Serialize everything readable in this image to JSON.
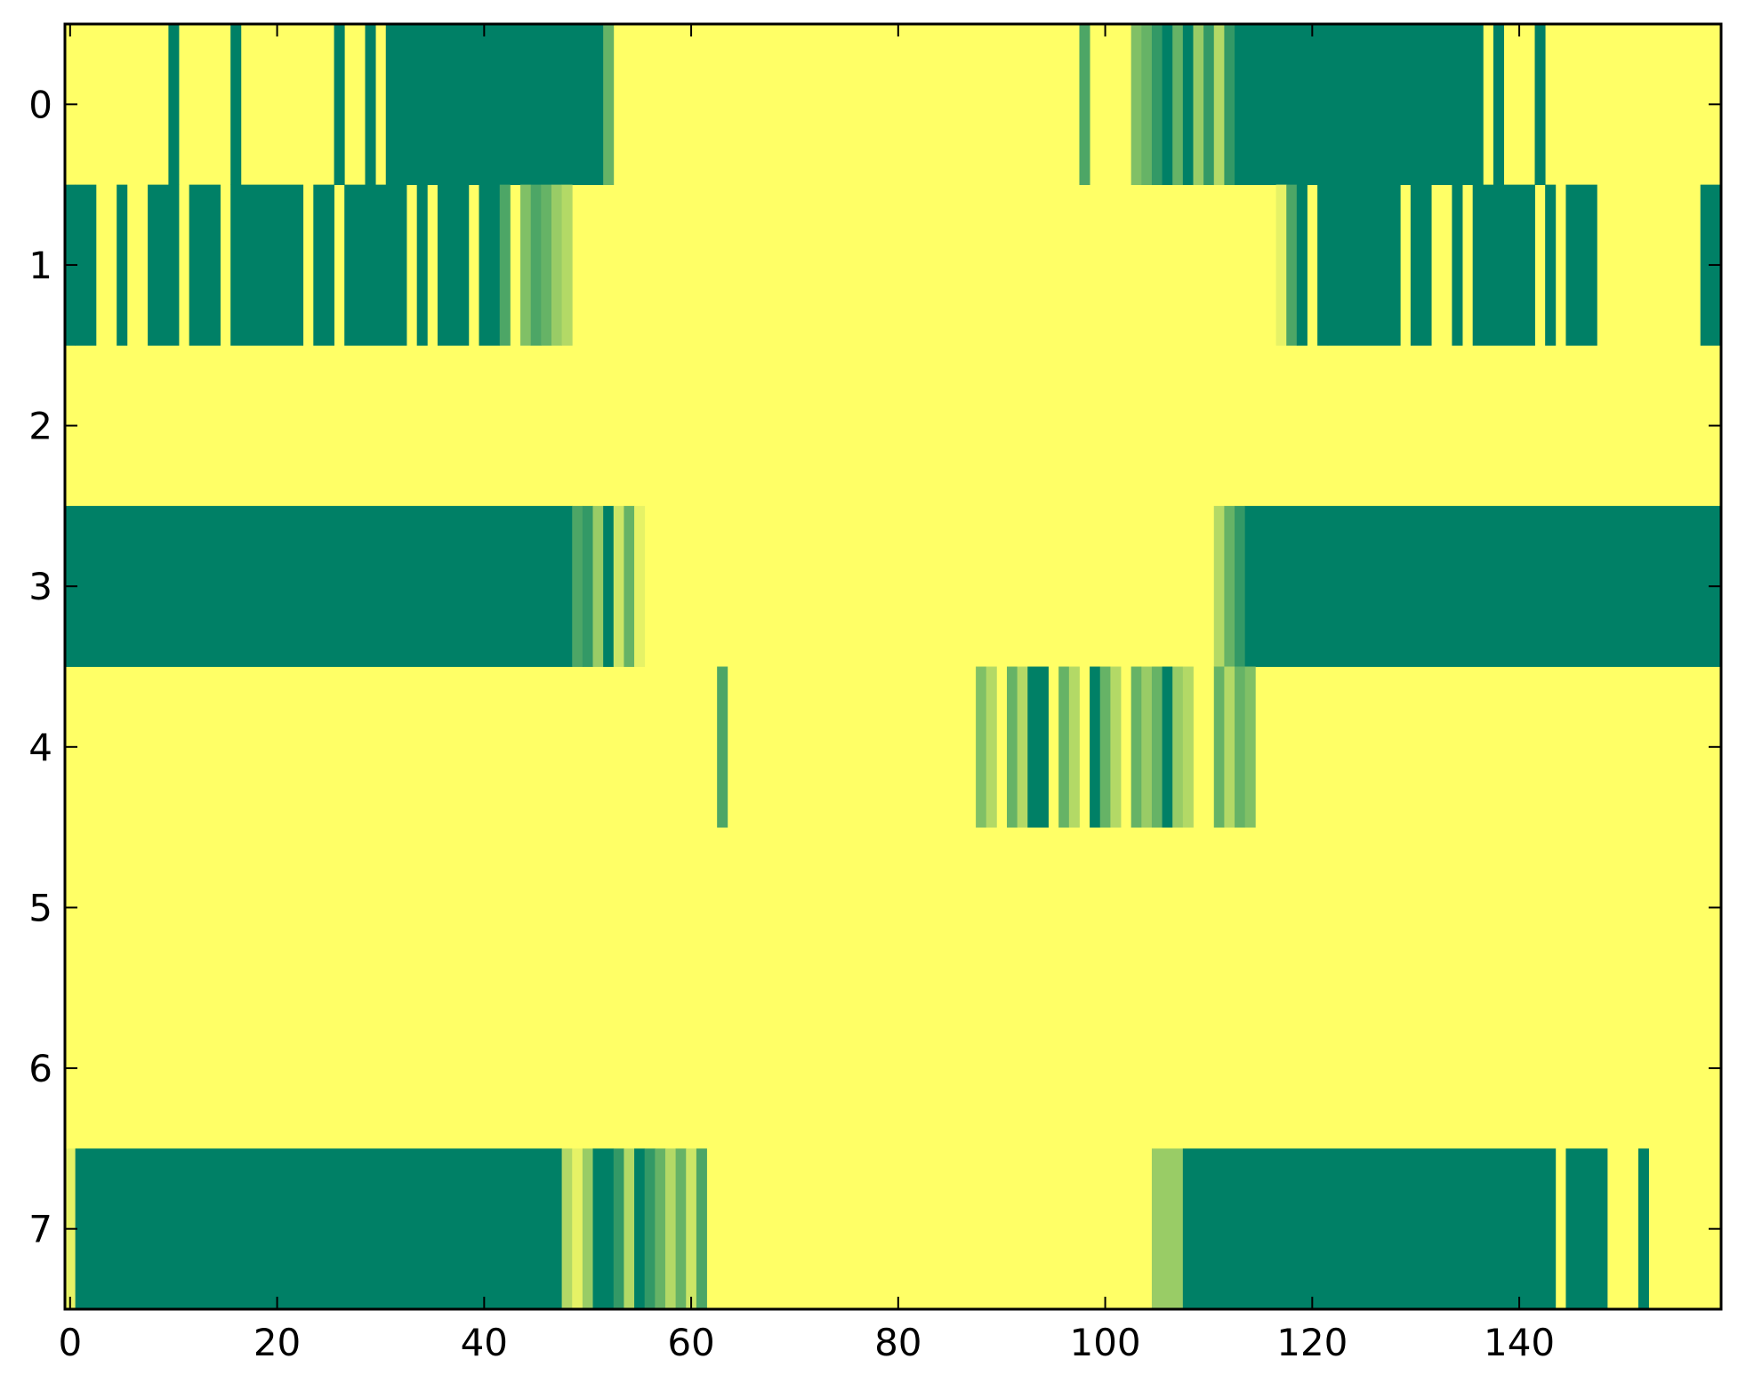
{
  "chart_data": {
    "type": "heatmap",
    "colormap": "summer_r",
    "colors": {
      "low": "#ffff66",
      "high": "#008066",
      "axes": "#000000",
      "background": "#ffffff"
    },
    "xlim": [
      -0.5,
      159.5
    ],
    "ylim": [
      7.5,
      -0.5
    ],
    "x_ticks": [
      0,
      20,
      40,
      60,
      80,
      100,
      120,
      140
    ],
    "x_tick_labels": [
      "0",
      "20",
      "40",
      "60",
      "80",
      "100",
      "120",
      "140"
    ],
    "y_ticks": [
      0,
      1,
      2,
      3,
      4,
      5,
      6,
      7
    ],
    "y_tick_labels": [
      "0",
      "1",
      "2",
      "3",
      "4",
      "5",
      "6",
      "7"
    ],
    "n_rows": 8,
    "n_cols": 160,
    "grid": false,
    "legend": "none",
    "rows": [
      {
        "row": 0,
        "segments": [
          [
            10,
            10,
            1
          ],
          [
            16,
            16,
            1
          ],
          [
            26,
            26,
            1
          ],
          [
            29,
            29,
            1
          ],
          [
            31,
            51,
            1
          ],
          [
            52,
            52,
            0.6
          ],
          [
            98,
            98,
            0.7
          ],
          [
            103,
            103,
            0.5
          ],
          [
            104,
            104,
            0.6
          ],
          [
            105,
            105,
            0.8
          ],
          [
            106,
            106,
            1
          ],
          [
            107,
            107,
            0.6
          ],
          [
            108,
            108,
            1
          ],
          [
            109,
            109,
            0.4
          ],
          [
            110,
            110,
            0.8
          ],
          [
            111,
            111,
            0.3
          ],
          [
            112,
            112,
            0.8
          ],
          [
            113,
            136,
            1
          ],
          [
            138,
            138,
            1
          ],
          [
            142,
            142,
            1
          ]
        ]
      },
      {
        "row": 1,
        "segments": [
          [
            0,
            0,
            1
          ],
          [
            1,
            2,
            1
          ],
          [
            5,
            5,
            1
          ],
          [
            8,
            10,
            1
          ],
          [
            12,
            14,
            1
          ],
          [
            16,
            22,
            1
          ],
          [
            24,
            25,
            1
          ],
          [
            27,
            32,
            1
          ],
          [
            34,
            34,
            1
          ],
          [
            36,
            38,
            1
          ],
          [
            40,
            41,
            1
          ],
          [
            42,
            42,
            0.7
          ],
          [
            44,
            44,
            0.5
          ],
          [
            45,
            45,
            0.7
          ],
          [
            46,
            46,
            0.6
          ],
          [
            47,
            47,
            0.4
          ],
          [
            48,
            48,
            0.3
          ],
          [
            117,
            117,
            0.1
          ],
          [
            118,
            118,
            0.7
          ],
          [
            119,
            119,
            1
          ],
          [
            121,
            121,
            1
          ],
          [
            122,
            128,
            1
          ],
          [
            130,
            131,
            1
          ],
          [
            134,
            134,
            1
          ],
          [
            136,
            141,
            1
          ],
          [
            143,
            143,
            1
          ],
          [
            145,
            147,
            1
          ],
          [
            158,
            159,
            1
          ]
        ]
      },
      {
        "row": 2,
        "segments": []
      },
      {
        "row": 3,
        "segments": [
          [
            0,
            48,
            1
          ],
          [
            49,
            49,
            0.7
          ],
          [
            50,
            50,
            0.8
          ],
          [
            51,
            51,
            0.4
          ],
          [
            52,
            52,
            1
          ],
          [
            53,
            53,
            0.2
          ],
          [
            54,
            54,
            0.6
          ],
          [
            55,
            55,
            0.1
          ],
          [
            111,
            111,
            0.3
          ],
          [
            112,
            112,
            0.6
          ],
          [
            113,
            113,
            0.8
          ],
          [
            114,
            159,
            1
          ]
        ]
      },
      {
        "row": 4,
        "segments": [
          [
            63,
            63,
            0.7
          ],
          [
            88,
            88,
            0.5
          ],
          [
            89,
            89,
            0.3
          ],
          [
            91,
            91,
            0.6
          ],
          [
            92,
            92,
            0.3
          ],
          [
            93,
            94,
            1
          ],
          [
            96,
            96,
            0.6
          ],
          [
            97,
            97,
            0.3
          ],
          [
            99,
            99,
            1
          ],
          [
            100,
            100,
            0.6
          ],
          [
            101,
            101,
            0.3
          ],
          [
            103,
            103,
            0.6
          ],
          [
            104,
            104,
            0.4
          ],
          [
            105,
            105,
            0.6
          ],
          [
            106,
            106,
            1
          ],
          [
            107,
            107,
            0.4
          ],
          [
            108,
            108,
            0.3
          ],
          [
            111,
            111,
            0.6
          ],
          [
            112,
            112,
            0.3
          ],
          [
            113,
            113,
            0.6
          ],
          [
            114,
            114,
            0.5
          ]
        ]
      },
      {
        "row": 5,
        "segments": []
      },
      {
        "row": 6,
        "segments": []
      },
      {
        "row": 7,
        "segments": [
          [
            0,
            0,
            0.1
          ],
          [
            1,
            47,
            1
          ],
          [
            48,
            48,
            0.3
          ],
          [
            49,
            49,
            0.1
          ],
          [
            50,
            50,
            0.4
          ],
          [
            51,
            52,
            1
          ],
          [
            53,
            53,
            0.8
          ],
          [
            54,
            54,
            0.3
          ],
          [
            55,
            55,
            1
          ],
          [
            56,
            56,
            0.8
          ],
          [
            57,
            57,
            0.6
          ],
          [
            58,
            58,
            0.3
          ],
          [
            59,
            59,
            0.6
          ],
          [
            60,
            60,
            0.2
          ],
          [
            61,
            61,
            0.7
          ],
          [
            105,
            107,
            0.4
          ],
          [
            108,
            143,
            1
          ],
          [
            145,
            148,
            1
          ],
          [
            152,
            152,
            1
          ]
        ]
      }
    ]
  }
}
